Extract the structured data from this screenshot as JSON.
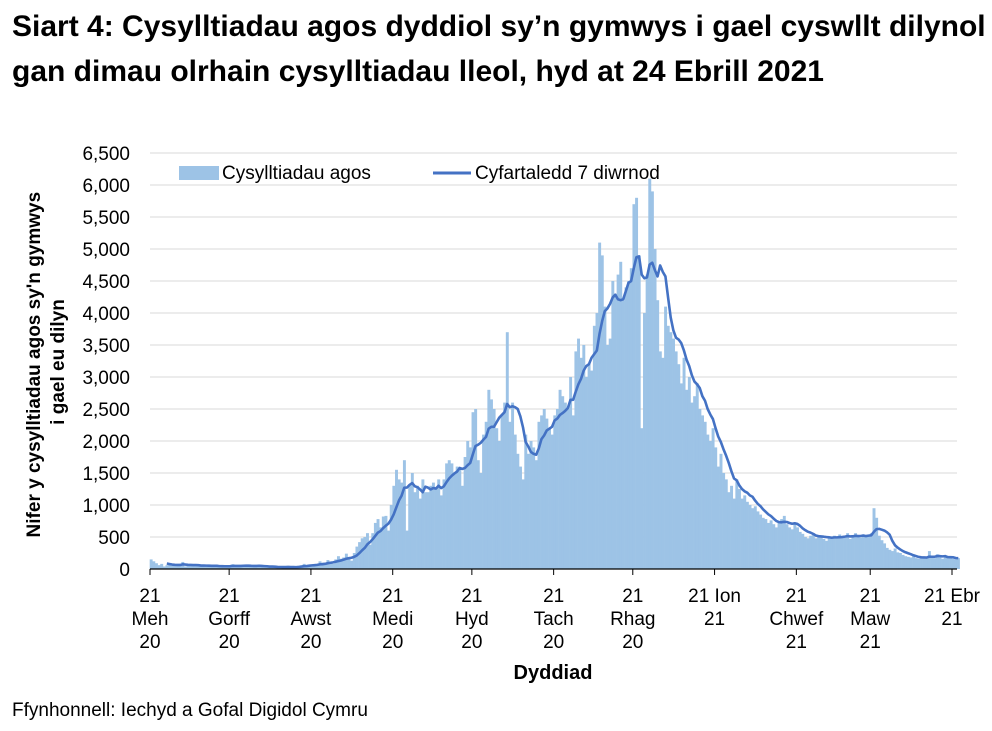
{
  "chart_data": {
    "type": "bar",
    "title": "Siart 4: Cysylltiadau agos dyddiol sy’n gymwys i gael cyswllt dilynol gan dimau olrhain cysylltiadau lleol, hyd at 24 Ebrill 2021",
    "xlabel": "Dyddiad",
    "ylabel": "Nifer y cysylltiadau agos sy'n gymwys i gael eu dilyn",
    "ylim": [
      0,
      6500
    ],
    "yticks": [
      "0",
      "500",
      "1,000",
      "1,500",
      "2,000",
      "2,500",
      "3,000",
      "3,500",
      "4,000",
      "4,500",
      "5,000",
      "5,500",
      "6,000",
      "6,500"
    ],
    "x_range": [
      "2020-06-21",
      "2021-04-23"
    ],
    "x_ticks": [
      {
        "date": "2020-06-21",
        "lines": [
          "21",
          "Meh",
          "20"
        ]
      },
      {
        "date": "2020-07-21",
        "lines": [
          "21",
          "Gorff",
          "20"
        ]
      },
      {
        "date": "2020-08-21",
        "lines": [
          "21",
          "Awst",
          "20"
        ]
      },
      {
        "date": "2020-09-21",
        "lines": [
          "21",
          "Medi",
          "20"
        ]
      },
      {
        "date": "2020-10-21",
        "lines": [
          "21",
          "Hyd",
          "20"
        ]
      },
      {
        "date": "2020-11-21",
        "lines": [
          "21",
          "Tach",
          "20"
        ]
      },
      {
        "date": "2020-12-21",
        "lines": [
          "21",
          "Rhag",
          "20"
        ]
      },
      {
        "date": "2021-01-21",
        "lines": [
          "21 Ion",
          "21"
        ]
      },
      {
        "date": "2021-02-21",
        "lines": [
          "21",
          "Chwef",
          "21"
        ]
      },
      {
        "date": "2021-03-21",
        "lines": [
          "21",
          "Maw",
          "21"
        ]
      },
      {
        "date": "2021-04-21",
        "lines": [
          "21 Ebr",
          "21"
        ]
      }
    ],
    "grid": true,
    "legend": "top-left",
    "series": [
      {
        "name": "Cysylltiadau agos",
        "type": "bar",
        "color": "#9dc3e6",
        "values": [
          150,
          120,
          90,
          60,
          80,
          40,
          60,
          90,
          70,
          60,
          50,
          70,
          110,
          40,
          60,
          55,
          50,
          45,
          60,
          70,
          40,
          50,
          45,
          40,
          45,
          55,
          40,
          35,
          40,
          45,
          50,
          75,
          50,
          40,
          35,
          60,
          55,
          45,
          60,
          45,
          40,
          50,
          40,
          35,
          30,
          30,
          40,
          30,
          25,
          30,
          25,
          35,
          40,
          30,
          25,
          20,
          50,
          60,
          80,
          55,
          70,
          60,
          45,
          80,
          120,
          100,
          90,
          140,
          110,
          80,
          150,
          200,
          160,
          180,
          240,
          170,
          130,
          250,
          350,
          420,
          480,
          500,
          560,
          380,
          560,
          720,
          780,
          650,
          820,
          830,
          600,
          1000,
          1300,
          1550,
          1400,
          1350,
          1700,
          600,
          1300,
          1500,
          1200,
          1300,
          1100,
          1400,
          1200,
          1200,
          1300,
          1350,
          1250,
          1400,
          1150,
          1400,
          1650,
          1700,
          1650,
          1500,
          1600,
          1550,
          1300,
          1750,
          2000,
          1900,
          2450,
          2500,
          1700,
          1500,
          2100,
          2300,
          2800,
          2650,
          2500,
          2200,
          2000,
          2400,
          2600,
          3700,
          2300,
          2600,
          2100,
          1800,
          1600,
          1400,
          2100,
          1800,
          2000,
          1900,
          1700,
          2300,
          2400,
          2500,
          2350,
          2200,
          2100,
          2400,
          2500,
          2800,
          2700,
          2600,
          2500,
          3000,
          2400,
          3400,
          3600,
          3300,
          3500,
          3000,
          3200,
          3100,
          3800,
          4000,
          5100,
          4900,
          4100,
          3500,
          3600,
          4500,
          4300,
          4600,
          4800,
          4200,
          4400,
          4500,
          4700,
          5700,
          5800,
          4900,
          2200,
          4000,
          4600,
          6100,
          5900,
          5000,
          4200,
          3400,
          3300,
          4100,
          3800,
          3700,
          3600,
          3400,
          3200,
          2900,
          3300,
          2800,
          3000,
          2600,
          2700,
          2900,
          2500,
          2400,
          2300,
          2100,
          2000,
          2200,
          1900,
          1600,
          1800,
          1500,
          1400,
          1200,
          1300,
          1100,
          1400,
          1250,
          1100,
          1150,
          1050,
          1000,
          950,
          980,
          900,
          850,
          800,
          780,
          720,
          760,
          700,
          650,
          720,
          780,
          830,
          700,
          650,
          620,
          700,
          650,
          580,
          550,
          500,
          480,
          520,
          560,
          480,
          500,
          520,
          470,
          440,
          500,
          510,
          520,
          500,
          540,
          480,
          490,
          560,
          470,
          530,
          560,
          510,
          490,
          540,
          500,
          520,
          560,
          950,
          800,
          520,
          450,
          400,
          330,
          300,
          280,
          320,
          260,
          250,
          220,
          200,
          190,
          180,
          200,
          170,
          160,
          180,
          190,
          170,
          280,
          190,
          170,
          230,
          180,
          160,
          200,
          170,
          180,
          160,
          150,
          170
        ]
      },
      {
        "name": "Cyfartaledd 7 diwrnod",
        "type": "line",
        "color": "#4472c4",
        "derived_from": "7-day rolling mean of Cysylltiadau agos"
      }
    ]
  },
  "source": "Ffynhonnell: Iechyd a Gofal Digidol Cymru"
}
